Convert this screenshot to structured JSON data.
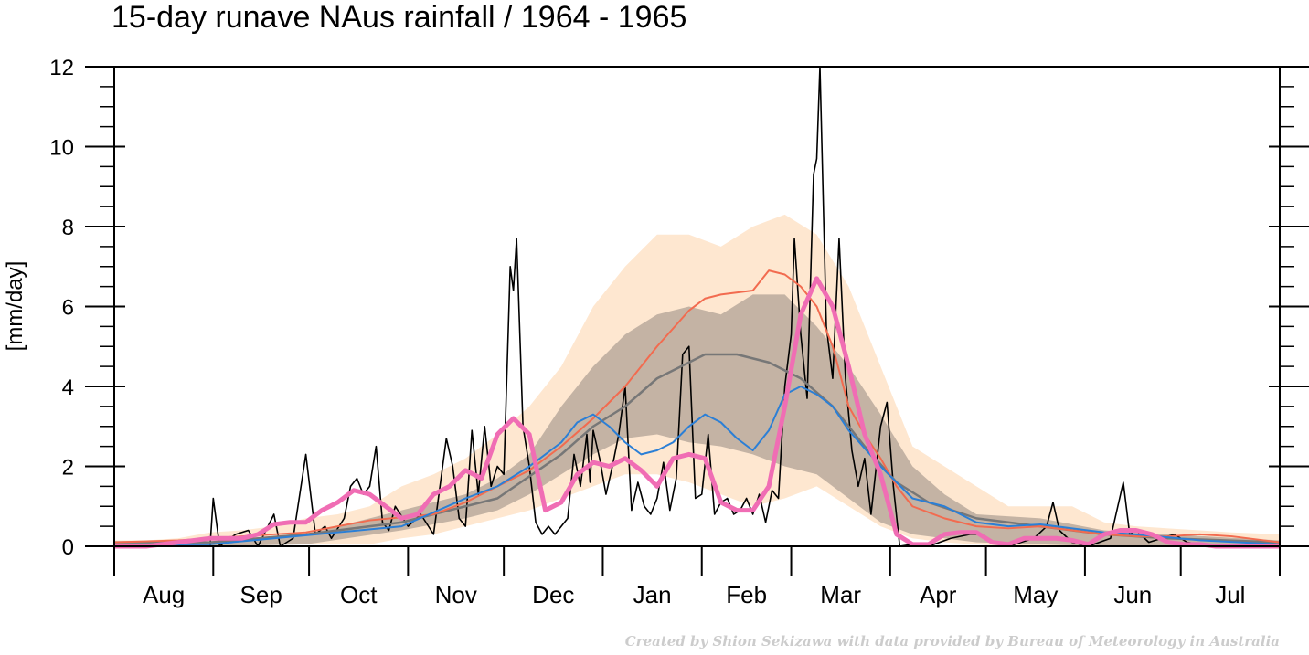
{
  "chart_data": {
    "type": "line",
    "title": "15-day runave NAus rainfall  /  1964 - 1965",
    "y_label": "[mm/day]",
    "credit": "Created by Shion Sekizawa with data provided by Bureau of Meteorology in Australia",
    "categories": [
      "Aug",
      "Sep",
      "Oct",
      "Nov",
      "Dec",
      "Jan",
      "Feb",
      "Mar",
      "Apr",
      "May",
      "Jun",
      "Jul"
    ],
    "xlim": [
      0,
      365
    ],
    "xticks": [
      0,
      31,
      61,
      92,
      122,
      153,
      184,
      212,
      243,
      273,
      304,
      334,
      365
    ],
    "ylim": [
      0,
      12
    ],
    "yticks": [
      0,
      2,
      4,
      6,
      8,
      10,
      12
    ],
    "yminorticks": [
      0.5,
      1,
      1.5,
      2.5,
      3,
      3.5,
      4.5,
      5,
      5.5,
      6.5,
      7,
      7.5,
      8.5,
      9,
      9.5,
      10.5,
      11,
      11.5
    ],
    "bands": [
      {
        "color": "#fee7d0",
        "x": [
          0,
          10,
          20,
          30,
          40,
          50,
          60,
          70,
          80,
          90,
          100,
          110,
          120,
          130,
          140,
          150,
          160,
          170,
          180,
          190,
          200,
          210,
          220,
          230,
          240,
          250,
          260,
          270,
          280,
          290,
          300,
          310,
          320,
          330,
          340,
          350,
          365
        ],
        "lower": [
          0,
          0,
          0,
          0,
          0,
          0.05,
          0.05,
          0.05,
          0.05,
          0.2,
          0.3,
          0.5,
          0.7,
          0.9,
          1.2,
          1.5,
          1.8,
          1.8,
          1.6,
          1.3,
          1.0,
          1.2,
          1.5,
          1.0,
          0.5,
          0.2,
          0.1,
          0.05,
          0,
          0,
          0,
          0,
          0,
          0,
          0,
          0,
          0
        ],
        "upper": [
          0.15,
          0.15,
          0.2,
          0.35,
          0.4,
          0.5,
          0.7,
          0.8,
          1.0,
          1.5,
          1.8,
          2.2,
          2.8,
          3.5,
          4.5,
          6.0,
          7.0,
          7.8,
          7.8,
          7.5,
          8.0,
          8.3,
          7.8,
          6.5,
          4.5,
          2.5,
          2.0,
          1.5,
          1.0,
          1.0,
          1.0,
          0.6,
          0.5,
          0.45,
          0.4,
          0.35,
          0.3
        ]
      },
      {
        "color": "#c4b3a4",
        "x": [
          0,
          30,
          60,
          90,
          110,
          120,
          130,
          140,
          150,
          160,
          170,
          180,
          190,
          200,
          210,
          220,
          230,
          240,
          250,
          260,
          270,
          290,
          310,
          330,
          365
        ],
        "lower": [
          0,
          0,
          0.05,
          0.4,
          0.7,
          0.9,
          1.3,
          1.8,
          2.3,
          2.7,
          2.8,
          2.6,
          2.5,
          2.3,
          2.0,
          1.8,
          1.2,
          0.6,
          0.3,
          0.2,
          0.1,
          0.05,
          0,
          0,
          0
        ],
        "upper": [
          0.05,
          0.1,
          0.3,
          0.9,
          1.3,
          1.7,
          2.3,
          3.5,
          4.5,
          5.3,
          5.8,
          6.0,
          5.8,
          6.3,
          6.3,
          5.5,
          4.5,
          3.3,
          2.0,
          1.3,
          0.8,
          0.7,
          0.4,
          0.3,
          0.15
        ]
      }
    ],
    "series": [
      {
        "color": "#000000",
        "width": 1.6,
        "x": [
          0,
          30,
          31,
          33,
          38,
          42,
          45,
          50,
          52,
          56,
          60,
          63,
          66,
          68,
          72,
          74,
          76,
          78,
          80,
          82,
          84,
          86,
          88,
          92,
          96,
          100,
          102,
          104,
          106,
          108,
          110,
          112,
          114,
          116,
          118,
          120,
          122,
          124,
          125,
          126,
          128,
          130,
          132,
          134,
          136,
          138,
          140,
          142,
          144,
          146,
          148,
          149,
          150,
          152,
          154,
          156,
          158,
          160,
          162,
          164,
          166,
          168,
          170,
          172,
          174,
          176,
          178,
          180,
          182,
          184,
          186,
          188,
          190,
          192,
          194,
          196,
          198,
          200,
          202,
          204,
          206,
          208,
          210,
          212,
          213,
          215,
          217,
          219,
          220,
          221,
          223,
          225,
          227,
          229,
          231,
          233,
          235,
          237,
          240,
          242,
          244,
          246,
          250,
          255,
          262,
          268,
          272,
          275,
          280,
          288,
          292,
          294,
          296,
          300,
          305,
          312,
          316,
          318,
          320,
          324,
          332,
          336,
          345,
          365
        ],
        "values": [
          0,
          0,
          1.2,
          0,
          0.3,
          0.4,
          0,
          0.8,
          0,
          0.2,
          2.3,
          0.3,
          0.5,
          0.2,
          0.7,
          1.5,
          1.7,
          1.3,
          1.5,
          2.5,
          0.6,
          0.4,
          1.0,
          0.5,
          0.8,
          0.3,
          1.5,
          2.7,
          2.0,
          0.7,
          0.5,
          2.9,
          1.3,
          3.0,
          1.5,
          2.0,
          1.8,
          7.0,
          6.4,
          7.7,
          3.0,
          2.0,
          0.6,
          0.3,
          0.5,
          0.3,
          0.5,
          0.7,
          2.3,
          1.5,
          2.8,
          1.6,
          2.9,
          2.2,
          1.3,
          2.0,
          2.8,
          4.0,
          0.9,
          1.6,
          1.0,
          0.8,
          1.2,
          2.1,
          0.9,
          1.7,
          4.8,
          5.0,
          1.2,
          1.3,
          2.8,
          0.8,
          1.1,
          1.2,
          0.8,
          0.9,
          1.2,
          0.8,
          1.3,
          0.6,
          1.4,
          1.2,
          4.0,
          5.3,
          7.7,
          5.3,
          3.7,
          9.3,
          9.7,
          12,
          5.5,
          4.2,
          7.7,
          4.2,
          2.4,
          1.5,
          2.2,
          0.8,
          3.0,
          3.6,
          1.5,
          0,
          0.05,
          0,
          0.2,
          0.3,
          0.3,
          0.1,
          0,
          0.2,
          0.5,
          1.1,
          0.4,
          0.1,
          0,
          0.2,
          1.6,
          0.3,
          0.4,
          0.1,
          0.3,
          0.1,
          0,
          0
        ]
      },
      {
        "color": "#777777",
        "width": 2.5,
        "x": [
          0,
          30,
          60,
          90,
          120,
          140,
          150,
          160,
          170,
          180,
          185,
          195,
          205,
          215,
          225,
          235,
          245,
          255,
          270,
          290,
          310,
          330,
          365
        ],
        "values": [
          0.1,
          0.1,
          0.3,
          0.6,
          1.2,
          2.3,
          3.0,
          3.5,
          4.2,
          4.6,
          4.8,
          4.8,
          4.6,
          4.2,
          3.5,
          2.5,
          1.6,
          1.1,
          0.7,
          0.5,
          0.3,
          0.2,
          0.1
        ]
      },
      {
        "color": "#f26b4f",
        "width": 2,
        "x": [
          0,
          20,
          40,
          60,
          80,
          100,
          110,
          120,
          130,
          140,
          150,
          160,
          170,
          180,
          185,
          190,
          200,
          205,
          210,
          215,
          220,
          225,
          230,
          235,
          240,
          245,
          250,
          260,
          270,
          280,
          290,
          300,
          310,
          320,
          330,
          340,
          350,
          365
        ],
        "values": [
          0.1,
          0.15,
          0.25,
          0.35,
          0.65,
          0.8,
          1.1,
          1.5,
          1.9,
          2.5,
          3.2,
          4.0,
          5.0,
          5.9,
          6.2,
          6.3,
          6.4,
          6.9,
          6.8,
          6.5,
          6.0,
          5.0,
          3.5,
          2.8,
          2.2,
          1.5,
          1.0,
          0.7,
          0.5,
          0.45,
          0.5,
          0.4,
          0.3,
          0.25,
          0.25,
          0.3,
          0.25,
          0.1
        ]
      },
      {
        "color": "#2b7fd6",
        "width": 2,
        "x": [
          0,
          30,
          50,
          70,
          90,
          110,
          120,
          130,
          140,
          145,
          150,
          155,
          160,
          165,
          170,
          175,
          180,
          185,
          190,
          195,
          200,
          205,
          210,
          215,
          220,
          225,
          230,
          240,
          250,
          260,
          270,
          280,
          290,
          300,
          310,
          320,
          340,
          365
        ],
        "values": [
          0.05,
          0.05,
          0.2,
          0.35,
          0.5,
          1.2,
          1.5,
          2.0,
          2.6,
          3.1,
          3.3,
          3.0,
          2.6,
          2.3,
          2.4,
          2.6,
          3.0,
          3.3,
          3.1,
          2.7,
          2.4,
          2.9,
          3.8,
          4.0,
          3.8,
          3.5,
          2.9,
          2.0,
          1.2,
          1.0,
          0.6,
          0.5,
          0.55,
          0.45,
          0.35,
          0.3,
          0.15,
          0.05
        ]
      },
      {
        "color": "#f06db4",
        "width": 5,
        "x": [
          0,
          10,
          20,
          25,
          30,
          35,
          40,
          45,
          50,
          55,
          60,
          65,
          70,
          75,
          80,
          85,
          90,
          95,
          100,
          105,
          110,
          115,
          120,
          125,
          130,
          135,
          140,
          145,
          150,
          155,
          160,
          165,
          170,
          175,
          180,
          185,
          190,
          195,
          200,
          205,
          210,
          215,
          220,
          225,
          230,
          235,
          240,
          245,
          250,
          255,
          260,
          265,
          270,
          275,
          280,
          285,
          290,
          295,
          300,
          305,
          310,
          315,
          320,
          325,
          330,
          335,
          340,
          345,
          350,
          355,
          365
        ],
        "values": [
          0,
          0,
          0.1,
          0.15,
          0.2,
          0.2,
          0.2,
          0.3,
          0.55,
          0.6,
          0.6,
          0.9,
          1.1,
          1.4,
          1.3,
          1.0,
          0.7,
          0.8,
          1.3,
          1.5,
          1.9,
          1.7,
          2.8,
          3.2,
          2.8,
          0.9,
          1.1,
          1.8,
          2.1,
          2.0,
          2.2,
          1.9,
          1.5,
          2.2,
          2.3,
          2.2,
          1.1,
          0.9,
          0.9,
          1.5,
          3.5,
          5.8,
          6.7,
          6.0,
          4.5,
          2.8,
          1.8,
          0.3,
          0.05,
          0.05,
          0.3,
          0.35,
          0.35,
          0.1,
          0.05,
          0.2,
          0.2,
          0.2,
          0.15,
          0.05,
          0.3,
          0.4,
          0.4,
          0.3,
          0.1,
          0.05,
          0.05,
          0,
          0,
          0,
          0
        ]
      }
    ]
  }
}
